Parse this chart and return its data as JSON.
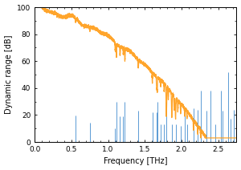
{
  "title": "",
  "xlabel": "Frequency [THz]",
  "ylabel": "Dynamic range [dB]",
  "xlim": [
    0,
    2.75
  ],
  "ylim": [
    0,
    100
  ],
  "yticks": [
    0,
    20,
    40,
    60,
    80,
    100
  ],
  "xticks": [
    0,
    0.5,
    1.0,
    1.5,
    2.0,
    2.5
  ],
  "orange_color": "#FFA020",
  "blue_color": "#5B9BD5",
  "background_color": "#ffffff",
  "water_lines": [
    [
      0.557,
      19.5
    ],
    [
      0.752,
      14.5
    ],
    [
      1.097,
      10.0
    ],
    [
      1.113,
      30.0
    ],
    [
      1.163,
      19.0
    ],
    [
      1.207,
      19.0
    ],
    [
      1.229,
      30.0
    ],
    [
      1.411,
      23.0
    ],
    [
      1.602,
      22.0
    ],
    [
      1.661,
      22.0
    ],
    [
      1.669,
      30.0
    ],
    [
      1.716,
      13.0
    ],
    [
      1.763,
      13.0
    ],
    [
      1.794,
      30.0
    ],
    [
      1.868,
      13.0
    ],
    [
      1.919,
      13.0
    ],
    [
      1.988,
      12.0
    ],
    [
      2.043,
      24.0
    ],
    [
      2.074,
      13.0
    ],
    [
      2.164,
      25.0
    ],
    [
      2.221,
      24.0
    ],
    [
      2.264,
      38.0
    ],
    [
      2.344,
      23.0
    ],
    [
      2.391,
      38.0
    ],
    [
      2.463,
      13.0
    ],
    [
      2.537,
      38.0
    ],
    [
      2.556,
      23.0
    ],
    [
      2.64,
      52.0
    ],
    [
      2.664,
      17.0
    ],
    [
      2.71,
      24.0
    ],
    [
      2.751,
      24.0
    ]
  ],
  "dip_lines": [
    [
      1.097,
      8
    ],
    [
      1.113,
      12
    ],
    [
      1.163,
      8
    ],
    [
      1.229,
      10
    ],
    [
      1.411,
      8
    ],
    [
      1.602,
      8
    ],
    [
      1.661,
      10
    ],
    [
      1.716,
      6
    ],
    [
      1.763,
      8
    ],
    [
      1.794,
      25
    ],
    [
      1.868,
      20
    ],
    [
      1.919,
      20
    ],
    [
      1.988,
      8
    ],
    [
      2.043,
      8
    ],
    [
      2.074,
      6
    ],
    [
      2.164,
      8
    ],
    [
      2.221,
      8
    ],
    [
      2.264,
      12
    ],
    [
      2.344,
      6
    ],
    [
      2.391,
      10
    ],
    [
      2.537,
      8
    ]
  ]
}
